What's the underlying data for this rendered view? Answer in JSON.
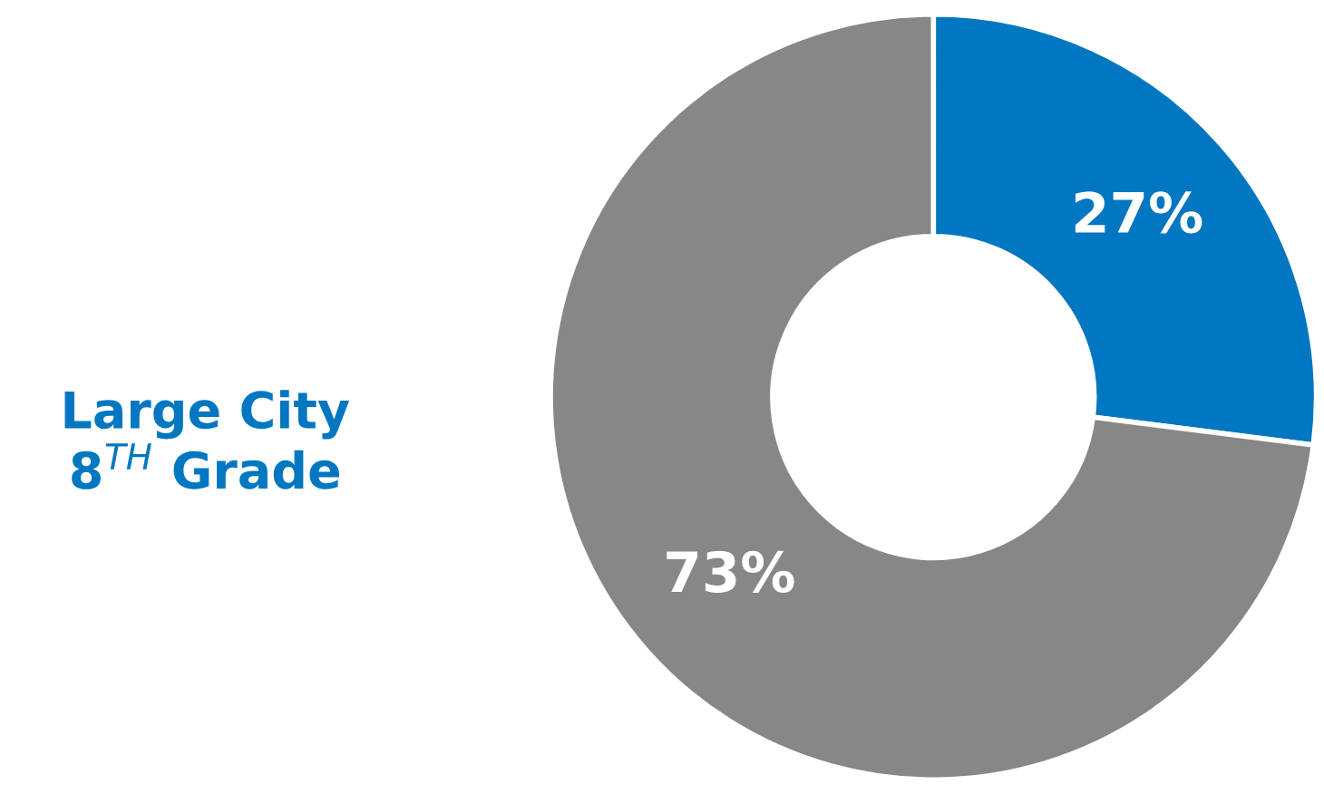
{
  "chart_data": {
    "type": "donut",
    "title": "Large City\n8$^{TH}$ Grade",
    "categories": [
      null,
      null
    ],
    "values": [
      27,
      73
    ],
    "colors": [
      "#0077c0",
      "#878787"
    ],
    "value_labels": [
      "27%",
      "73%"
    ]
  }
}
